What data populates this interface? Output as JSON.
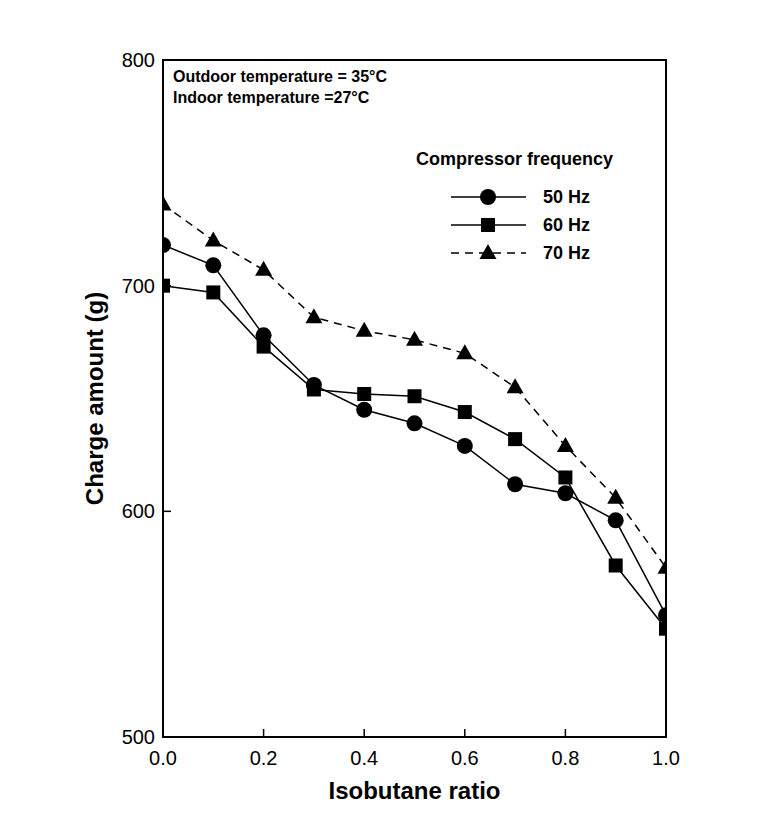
{
  "chart_data": {
    "type": "line",
    "x_label": "Isobutane ratio",
    "y_label": "Charge amount (g)",
    "annotations": [
      "Outdoor temperature = 35°C",
      "Indoor temperature =27°C"
    ],
    "legend_title": "Compressor frequency",
    "legend": "upper right",
    "x": [
      0.0,
      0.1,
      0.2,
      0.3,
      0.4,
      0.5,
      0.6,
      0.7,
      0.8,
      0.9,
      1.0
    ],
    "series": [
      {
        "name": "50 Hz",
        "color": "#000000",
        "marker": "circle",
        "line_style": "solid",
        "values": [
          718,
          709,
          678,
          656,
          645,
          639,
          629,
          612,
          608,
          596,
          554
        ]
      },
      {
        "name": "60 Hz",
        "color": "#000000",
        "marker": "square",
        "line_style": "solid",
        "values": [
          700,
          697,
          673,
          654,
          652,
          651,
          644,
          632,
          615,
          576,
          548
        ]
      },
      {
        "name": "70 Hz",
        "color": "#000000",
        "marker": "triangle",
        "line_style": "dashed",
        "values": [
          736,
          720,
          707,
          686,
          680,
          676,
          670,
          655,
          629,
          606,
          575
        ]
      }
    ],
    "xlim": [
      0,
      1
    ],
    "ylim": [
      500,
      800
    ],
    "xticks": [
      {
        "value": 0,
        "label": "0.0"
      },
      0.2,
      0.4,
      0.6,
      0.8,
      {
        "value": 1,
        "label": "1.0"
      }
    ],
    "yticks": [
      500,
      600,
      700,
      800
    ],
    "grid": false
  }
}
